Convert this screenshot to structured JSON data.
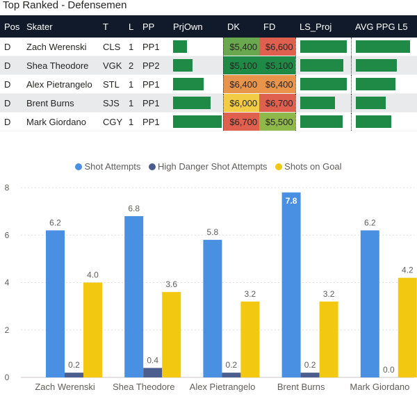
{
  "page": {
    "title": "Top Ranked - Defensemen"
  },
  "table": {
    "columns": [
      "Pos",
      "Skater",
      "T",
      "L",
      "PP",
      "PrjOwn",
      "DK",
      "FD",
      "LS_Proj",
      "AVG PPG L5"
    ],
    "rows": [
      {
        "pos": "D",
        "skater": "Zach Werenski",
        "team": "CLS",
        "line": "1",
        "pp": "PP1",
        "prjown": 0.28,
        "dk": "$5,400",
        "dk_color": "#6aa84f",
        "fd": "$6,600",
        "fd_color": "#e06050",
        "ls_proj": 0.95,
        "avg_ppg": 0.92
      },
      {
        "pos": "D",
        "skater": "Shea Theodore",
        "team": "VGK",
        "line": "2",
        "pp": "PP2",
        "prjown": 0.4,
        "dk": "$5,100",
        "dk_color": "#1e8a45",
        "fd": "$5,100",
        "fd_color": "#1e8a45",
        "ls_proj": 0.88,
        "avg_ppg": 0.7
      },
      {
        "pos": "D",
        "skater": "Alex Pietrangelo",
        "team": "STL",
        "line": "1",
        "pp": "PP1",
        "prjown": 0.63,
        "dk": "$6,400",
        "dk_color": "#e8944a",
        "fd": "$6,400",
        "fd_color": "#e8944a",
        "ls_proj": 0.96,
        "avg_ppg": 0.67
      },
      {
        "pos": "D",
        "skater": "Brent Burns",
        "team": "SJS",
        "line": "1",
        "pp": "PP1",
        "prjown": 0.77,
        "dk": "$6,000",
        "dk_color": "#f2cc44",
        "fd": "$6,700",
        "fd_color": "#e06050",
        "ls_proj": 0.72,
        "avg_ppg": 0.5
      },
      {
        "pos": "D",
        "skater": "Mark Giordano",
        "team": "CGY",
        "line": "1",
        "pp": "PP1",
        "prjown": 1.0,
        "dk": "$6,700",
        "dk_color": "#e06050",
        "fd": "$5,500",
        "fd_color": "#8fb84a",
        "ls_proj": 0.87,
        "avg_ppg": 0.6
      }
    ]
  },
  "colors": {
    "header_bg": "#101a2b",
    "bar_green": "#1e8a45"
  },
  "chart_data": {
    "type": "bar",
    "categories": [
      "Zach Werenski",
      "Shea Theodore",
      "Alex Pietrangelo",
      "Brent Burns",
      "Mark Giordano"
    ],
    "series": [
      {
        "name": "Shot Attempts",
        "color": "#4a90e2",
        "values": [
          6.2,
          6.8,
          5.8,
          7.8,
          6.2
        ]
      },
      {
        "name": "High Danger Shot Attempts",
        "color": "#4a5d8c",
        "values": [
          0.2,
          0.4,
          0.2,
          0.2,
          0.0
        ]
      },
      {
        "name": "Shots on Goal",
        "color": "#f2c811",
        "values": [
          4.0,
          3.6,
          3.2,
          3.2,
          4.2
        ]
      }
    ],
    "ylim": [
      0,
      8
    ],
    "yticks": [
      0,
      2,
      4,
      6,
      8
    ],
    "highlight": {
      "series": 0,
      "index": 3
    }
  }
}
